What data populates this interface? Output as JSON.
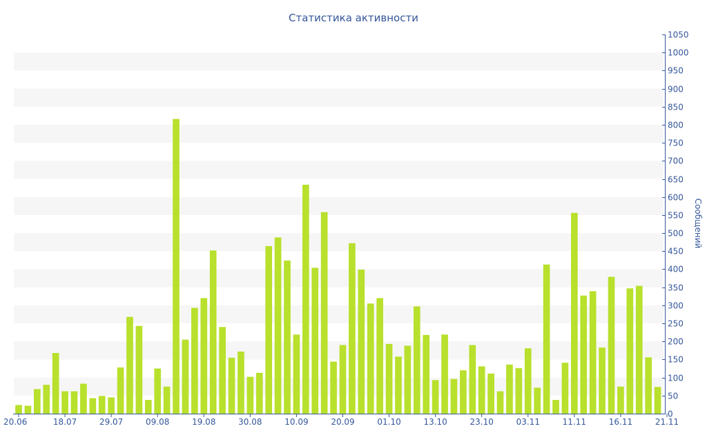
{
  "chart_data": {
    "type": "bar",
    "title": "Статистика активности",
    "xlabel": "",
    "ylabel": "Сообщений",
    "ylim": [
      0,
      1050
    ],
    "y_ticks": [
      0,
      50,
      100,
      150,
      200,
      250,
      300,
      350,
      400,
      450,
      500,
      550,
      600,
      650,
      700,
      750,
      800,
      850,
      900,
      950,
      1000,
      1050
    ],
    "y_axis_position": "right",
    "grid": "alternating horizontal bands",
    "x_tick_labels": [
      "20.06",
      "18.07",
      "29.07",
      "09.08",
      "19.08",
      "30.08",
      "10.09",
      "20.09",
      "01.10",
      "13.10",
      "23.10",
      "03.11",
      "11.11",
      "16.11",
      "21.11"
    ],
    "x_tick_indices": [
      0,
      5,
      10,
      15,
      20,
      25,
      30,
      35,
      40,
      45,
      50,
      55,
      60,
      65,
      70
    ],
    "values": [
      24,
      22,
      68,
      80,
      168,
      62,
      62,
      83,
      43,
      49,
      45,
      128,
      268,
      243,
      38,
      125,
      75,
      816,
      205,
      293,
      320,
      452,
      240,
      155,
      172,
      102,
      113,
      464,
      488,
      424,
      219,
      634,
      404,
      558,
      144,
      190,
      472,
      399,
      305,
      320,
      193,
      158,
      188,
      297,
      218,
      93,
      219,
      96,
      120,
      190,
      131,
      111,
      62,
      136,
      126,
      181,
      72,
      413,
      38,
      141,
      556,
      327,
      339,
      183,
      379,
      75,
      347,
      354,
      156,
      74
    ],
    "colors": {
      "bar": "#b8e02c",
      "band": "#f6f6f6",
      "text": "#34569a",
      "axis": "#34569a"
    }
  }
}
